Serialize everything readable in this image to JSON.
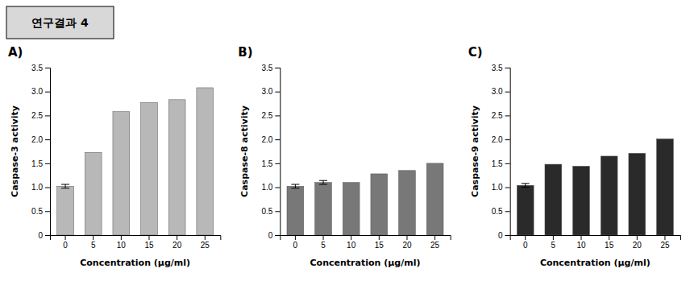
{
  "title": "연구결과 4",
  "chart_data": [
    {
      "type": "bar",
      "title": "A)",
      "categories": [
        0,
        5,
        10,
        15,
        20,
        25
      ],
      "xlabel": "Concentration (μg/ml)",
      "ylabel": "Caspase-3 activity",
      "values": [
        1.02,
        1.73,
        2.58,
        2.77,
        2.83,
        3.08
      ],
      "error_bars": [
        0.04,
        0.0,
        0.0,
        0.0,
        0.0,
        0.0
      ],
      "color": "#b8b8b8",
      "ylim": [
        0,
        3.5
      ],
      "yticks": [
        0,
        0.5,
        {
          "value": 1.0,
          "label": "1.0"
        },
        1.5,
        {
          "value": 2.0,
          "label": "2.0"
        },
        2.5,
        {
          "value": 3.0,
          "label": "3.0"
        },
        3.5
      ]
    },
    {
      "type": "bar",
      "title": "B)",
      "categories": [
        0,
        5,
        10,
        15,
        20,
        25
      ],
      "xlabel": "Concentration (μg/ml)",
      "ylabel": "Caspase-8 activity",
      "values": [
        1.02,
        1.1,
        1.1,
        1.28,
        1.35,
        1.5
      ],
      "error_bars": [
        0.04,
        0.04,
        0.0,
        0.0,
        0.0,
        0.0
      ],
      "color": "#787878",
      "ylim": [
        0,
        3.5
      ],
      "yticks": [
        0,
        0.5,
        {
          "value": 1.0,
          "label": "1.0"
        },
        1.5,
        {
          "value": 2.0,
          "label": "2.0"
        },
        2.5,
        {
          "value": 3.0,
          "label": "3.0"
        },
        3.5
      ]
    },
    {
      "type": "bar",
      "title": "C)",
      "categories": [
        0,
        5,
        10,
        15,
        20,
        25
      ],
      "xlabel": "Concentration (μg/ml)",
      "ylabel": "Caspase-9 activity",
      "values": [
        1.04,
        1.48,
        1.44,
        1.65,
        1.71,
        2.01
      ],
      "error_bars": [
        0.04,
        0.0,
        0.0,
        0.0,
        0.0,
        0.0
      ],
      "color": "#2a2a2a",
      "ylim": [
        0,
        3.5
      ],
      "yticks": [
        0,
        0.5,
        {
          "value": 1.0,
          "label": "1.0"
        },
        1.5,
        {
          "value": 2.0,
          "label": "2.0"
        },
        2.5,
        {
          "value": 3.0,
          "label": "3.0"
        },
        3.5
      ]
    }
  ]
}
